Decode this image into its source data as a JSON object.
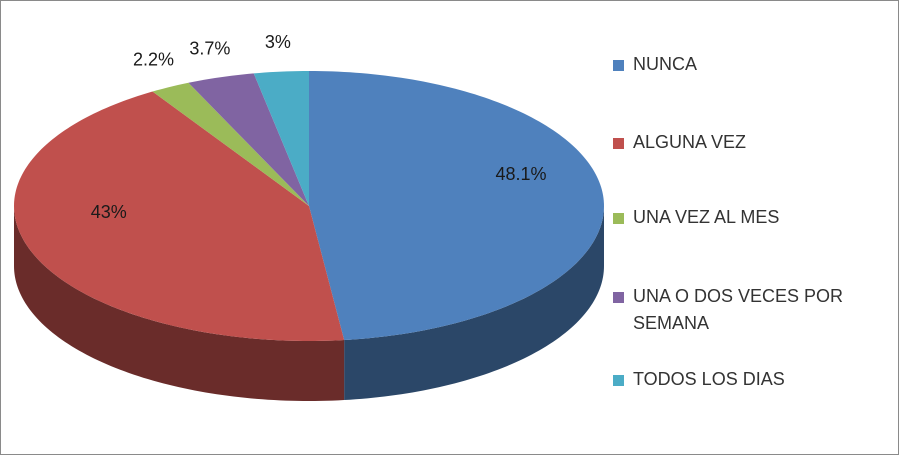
{
  "chart_data": {
    "type": "pie",
    "categories": [
      "NUNCA",
      "ALGUNA VEZ",
      "UNA VEZ AL MES",
      "UNA O DOS VECES POR SEMANA",
      "TODOS LOS DIAS"
    ],
    "values": [
      48.1,
      43,
      2.2,
      3.7,
      3
    ],
    "value_labels": [
      "48.1%",
      "43%",
      "2.2%",
      "3.7%",
      "3%"
    ],
    "colors": [
      "#4f81bd",
      "#c0504d",
      "#9bbb59",
      "#8064a2",
      "#4bacc6"
    ],
    "legend": "right"
  }
}
